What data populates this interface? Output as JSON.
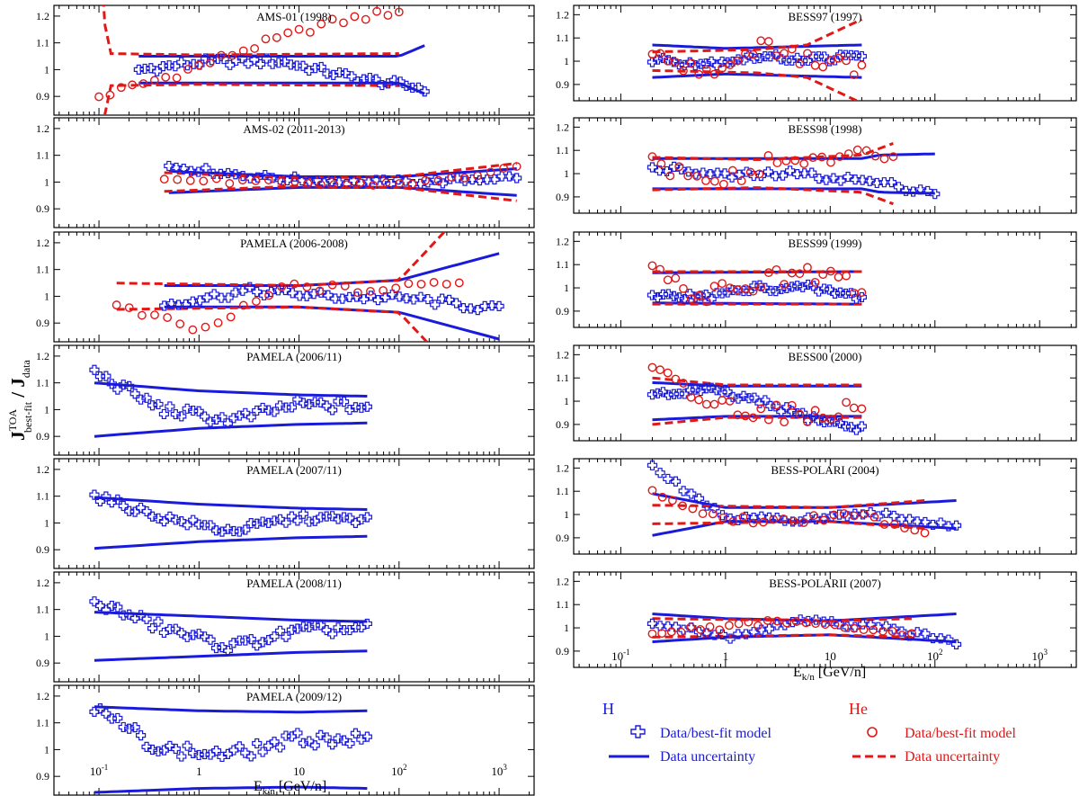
{
  "chart_data": {
    "type": "scatter",
    "y_axis_label": {
      "main": "J",
      "sup": "TOA",
      "sub": "best-fit",
      "rest": " / J",
      "sub2": "data"
    },
    "x_axis_label": {
      "main": "E",
      "sub": "k/n",
      "rest": "  [GeV/n]"
    },
    "x_scale": "log",
    "x_ticks": [
      {
        "value": 0.1,
        "base": "10",
        "exp": "-1"
      },
      {
        "value": 1,
        "base": "1",
        "exp": ""
      },
      {
        "value": 10,
        "base": "10",
        "exp": ""
      },
      {
        "value": 100,
        "base": "10",
        "exp": "2"
      },
      {
        "value": 1000,
        "base": "10",
        "exp": "3"
      }
    ],
    "y_ticks": [
      "0.9",
      "1",
      "1.1",
      "1.2"
    ],
    "ylim": [
      0.83,
      1.24
    ],
    "legend": {
      "H": {
        "title": "H",
        "color": "#1a1adb",
        "marker_label": "Data/best-fit model",
        "line_label": "Data uncertainty"
      },
      "He": {
        "title": "He",
        "color": "#e01818",
        "marker_label": "Data/best-fit model",
        "line_label": "Data uncertainty"
      }
    },
    "panels": [
      {
        "title": "AMS-01 (1998)",
        "h_range": [
          0.25,
          180
        ],
        "h_mid": [
          1.0,
          1.03,
          1.03,
          0.97,
          0.93
        ],
        "h_amp": 0.014,
        "h_band": [
          [
            0.25,
            0.05
          ],
          [
            10,
            0.05
          ],
          [
            100,
            0.05
          ],
          [
            180,
            0.09
          ]
        ],
        "he_range": [
          0.1,
          100
        ],
        "he_mid": [
          0.9,
          0.98,
          1.08,
          1.17,
          1.22
        ],
        "he_amp": 0.015,
        "he_band": [
          [
            0.1,
            0.5
          ],
          [
            0.12,
            0.06
          ],
          [
            1,
            0.055
          ],
          [
            100,
            0.06
          ],
          [
            150,
            0.07
          ]
        ]
      },
      {
        "title": "AMS-02 (2011-2013)",
        "h_range": [
          0.5,
          1500
        ],
        "h_mid": [
          1.06,
          1.02,
          1.0,
          1.0,
          1.02
        ],
        "h_amp": 0.01,
        "h_band": [
          [
            0.5,
            0.04
          ],
          [
            10,
            0.02
          ],
          [
            100,
            0.02
          ],
          [
            1500,
            0.05
          ]
        ],
        "he_range": [
          0.45,
          1500
        ],
        "he_mid": [
          1.01,
          1.0,
          0.99,
          1.0,
          1.05
        ],
        "he_amp": 0.01,
        "he_band": [
          [
            0.45,
            0.035
          ],
          [
            10,
            0.015
          ],
          [
            100,
            0.02
          ],
          [
            1500,
            0.07
          ]
        ]
      },
      {
        "title": "PAMELA (2006-2008)",
        "h_range": [
          0.45,
          1000
        ],
        "h_mid": [
          0.97,
          1.02,
          1.0,
          0.99,
          0.95
        ],
        "h_amp": 0.015,
        "h_band": [
          [
            0.45,
            0.04
          ],
          [
            10,
            0.04
          ],
          [
            100,
            0.06
          ],
          [
            1000,
            0.16
          ]
        ],
        "he_range": [
          0.15,
          400
        ],
        "he_mid": [
          0.96,
          0.87,
          1.04,
          1.02,
          1.06
        ],
        "he_amp": 0.015,
        "he_band": [
          [
            0.1,
            0.05
          ],
          [
            10,
            0.04
          ],
          [
            100,
            0.06
          ],
          [
            400,
            0.3
          ]
        ]
      },
      {
        "title": "PAMELA (2006/11)",
        "h_range": [
          0.09,
          48
        ],
        "h_mid": [
          1.14,
          1.0,
          0.96,
          1.02,
          1.01
        ],
        "h_amp": 0.02,
        "h_band": [
          [
            0.09,
            0.1
          ],
          [
            1,
            0.07
          ],
          [
            10,
            0.055
          ],
          [
            48,
            0.05
          ]
        ]
      },
      {
        "title": "PAMELA (2007/11)",
        "h_range": [
          0.09,
          48
        ],
        "h_mid": [
          1.1,
          1.02,
          0.97,
          1.02,
          1.01
        ],
        "h_amp": 0.015,
        "h_band": [
          [
            0.09,
            0.095
          ],
          [
            1,
            0.07
          ],
          [
            10,
            0.055
          ],
          [
            48,
            0.05
          ]
        ]
      },
      {
        "title": "PAMELA (2008/11)",
        "h_range": [
          0.09,
          48
        ],
        "h_mid": [
          1.13,
          1.03,
          0.96,
          1.02,
          1.03
        ],
        "h_amp": 0.02,
        "h_band": [
          [
            0.09,
            0.09
          ],
          [
            1,
            0.075
          ],
          [
            10,
            0.06
          ],
          [
            48,
            0.055
          ]
        ]
      },
      {
        "title": "PAMELA (2009/12)",
        "h_range": [
          0.09,
          48
        ],
        "h_mid": [
          1.15,
          1.0,
          0.98,
          1.04,
          1.04
        ],
        "h_amp": 0.025,
        "h_band": [
          [
            0.09,
            0.16
          ],
          [
            1,
            0.145
          ],
          [
            10,
            0.14
          ],
          [
            48,
            0.145
          ]
        ]
      },
      {
        "title": "BESS97 (1997)",
        "h_range": [
          0.2,
          20
        ],
        "h_mid": [
          1.01,
          0.99,
          1.02,
          1.01,
          1.02
        ],
        "h_amp": 0.015,
        "h_band": [
          [
            0.2,
            0.07
          ],
          [
            1,
            0.055
          ],
          [
            20,
            0.07
          ]
        ],
        "he_range": [
          0.2,
          20
        ],
        "he_mid": [
          1.05,
          0.95,
          1.06,
          1.0,
          0.96
        ],
        "he_amp": 0.04,
        "he_band": [
          [
            0.2,
            0.04
          ],
          [
            2,
            0.05
          ],
          [
            6,
            0.07
          ],
          [
            20,
            0.18
          ]
        ]
      },
      {
        "title": "BESS98 (1998)",
        "h_range": [
          0.2,
          100
        ],
        "h_mid": [
          1.03,
          0.99,
          1.0,
          0.97,
          0.92
        ],
        "h_amp": 0.015,
        "h_band": [
          [
            0.2,
            0.065
          ],
          [
            20,
            0.065
          ],
          [
            30,
            0.08
          ],
          [
            100,
            0.085
          ]
        ],
        "he_range": [
          0.2,
          40
        ],
        "he_mid": [
          1.05,
          0.96,
          1.05,
          1.06,
          1.09
        ],
        "he_amp": 0.035,
        "he_band": [
          [
            0.2,
            0.07
          ],
          [
            2,
            0.06
          ],
          [
            20,
            0.08
          ],
          [
            40,
            0.13
          ]
        ]
      },
      {
        "title": "BESS99 (1999)",
        "h_range": [
          0.2,
          20
        ],
        "h_mid": [
          0.97,
          0.96,
          1.0,
          1.0,
          0.96
        ],
        "h_amp": 0.015,
        "h_band": [
          [
            0.2,
            0.065
          ],
          [
            20,
            0.07
          ]
        ],
        "he_range": [
          0.2,
          20
        ],
        "he_mid": [
          1.06,
          0.96,
          1.03,
          1.06,
          1.0
        ],
        "he_amp": 0.04,
        "he_band": [
          [
            0.2,
            0.07
          ],
          [
            20,
            0.07
          ]
        ]
      },
      {
        "title": "BESS00 (2000)",
        "h_range": [
          0.2,
          20
        ],
        "h_mid": [
          1.02,
          1.05,
          1.0,
          0.93,
          0.88
        ],
        "h_amp": 0.015,
        "h_band": [
          [
            0.2,
            0.08
          ],
          [
            1,
            0.065
          ],
          [
            20,
            0.065
          ]
        ],
        "he_range": [
          0.2,
          20
        ],
        "he_mid": [
          1.13,
          1.0,
          0.96,
          0.94,
          0.98
        ],
        "he_amp": 0.04,
        "he_band": [
          [
            0.2,
            0.1
          ],
          [
            1,
            0.07
          ],
          [
            20,
            0.07
          ]
        ]
      },
      {
        "title": "BESS-POLARI (2004)",
        "h_range": [
          0.2,
          160
        ],
        "h_mid": [
          1.2,
          0.98,
          0.98,
          1.0,
          0.95
        ],
        "h_amp": 0.012,
        "h_band": [
          [
            0.2,
            0.09
          ],
          [
            1,
            0.03
          ],
          [
            10,
            0.03
          ],
          [
            160,
            0.06
          ]
        ],
        "he_range": [
          0.2,
          80
        ],
        "he_mid": [
          1.1,
          0.98,
          0.97,
          1.0,
          0.93
        ],
        "he_amp": 0.015,
        "he_band": [
          [
            0.2,
            0.04
          ],
          [
            10,
            0.03
          ],
          [
            80,
            0.06
          ]
        ]
      },
      {
        "title": "BESS-POLARII (2007)",
        "h_range": [
          0.2,
          160
        ],
        "h_mid": [
          1.02,
          0.96,
          1.03,
          1.0,
          0.94
        ],
        "h_amp": 0.012,
        "h_band": [
          [
            0.2,
            0.06
          ],
          [
            1,
            0.04
          ],
          [
            10,
            0.03
          ],
          [
            160,
            0.06
          ]
        ],
        "he_range": [
          0.2,
          60
        ],
        "he_mid": [
          0.98,
          1.0,
          1.03,
          1.0,
          0.97
        ],
        "he_amp": 0.012,
        "he_band": [
          [
            0.2,
            0.04
          ],
          [
            10,
            0.03
          ],
          [
            60,
            0.04
          ]
        ]
      }
    ]
  }
}
